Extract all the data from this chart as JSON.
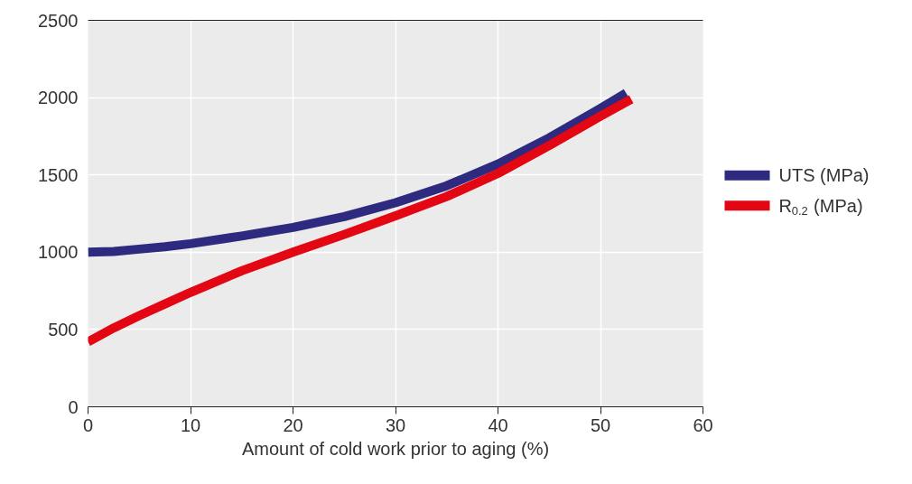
{
  "chart_data": {
    "type": "line",
    "xlabel": "Amount of cold work prior to aging (%)",
    "xlim": [
      0,
      60
    ],
    "xticks": [
      0,
      10,
      20,
      30,
      40,
      50,
      60
    ],
    "ylim": [
      0,
      2500
    ],
    "yticks": [
      0,
      500,
      1000,
      1500,
      2000,
      2500
    ],
    "grid": true,
    "legend": "right",
    "line_style": "solid",
    "series": [
      {
        "name": "UTS (MPa)",
        "color": "#2e2a80",
        "x": [
          0,
          2.5,
          5,
          7.5,
          10,
          15,
          20,
          25,
          30,
          35,
          40,
          45,
          50,
          52.5
        ],
        "values": [
          1000,
          1005,
          1020,
          1035,
          1055,
          1105,
          1160,
          1230,
          1320,
          1430,
          1570,
          1740,
          1930,
          2030
        ]
      },
      {
        "name": "R$_{0.2}$ (MPa)",
        "color": "#e30613",
        "x": [
          0,
          2.5,
          5,
          7.5,
          10,
          15,
          20,
          25,
          30,
          35,
          40,
          45,
          50,
          53
        ],
        "values": [
          420,
          510,
          590,
          665,
          740,
          880,
          1000,
          1115,
          1235,
          1360,
          1510,
          1690,
          1880,
          1990
        ]
      }
    ]
  }
}
